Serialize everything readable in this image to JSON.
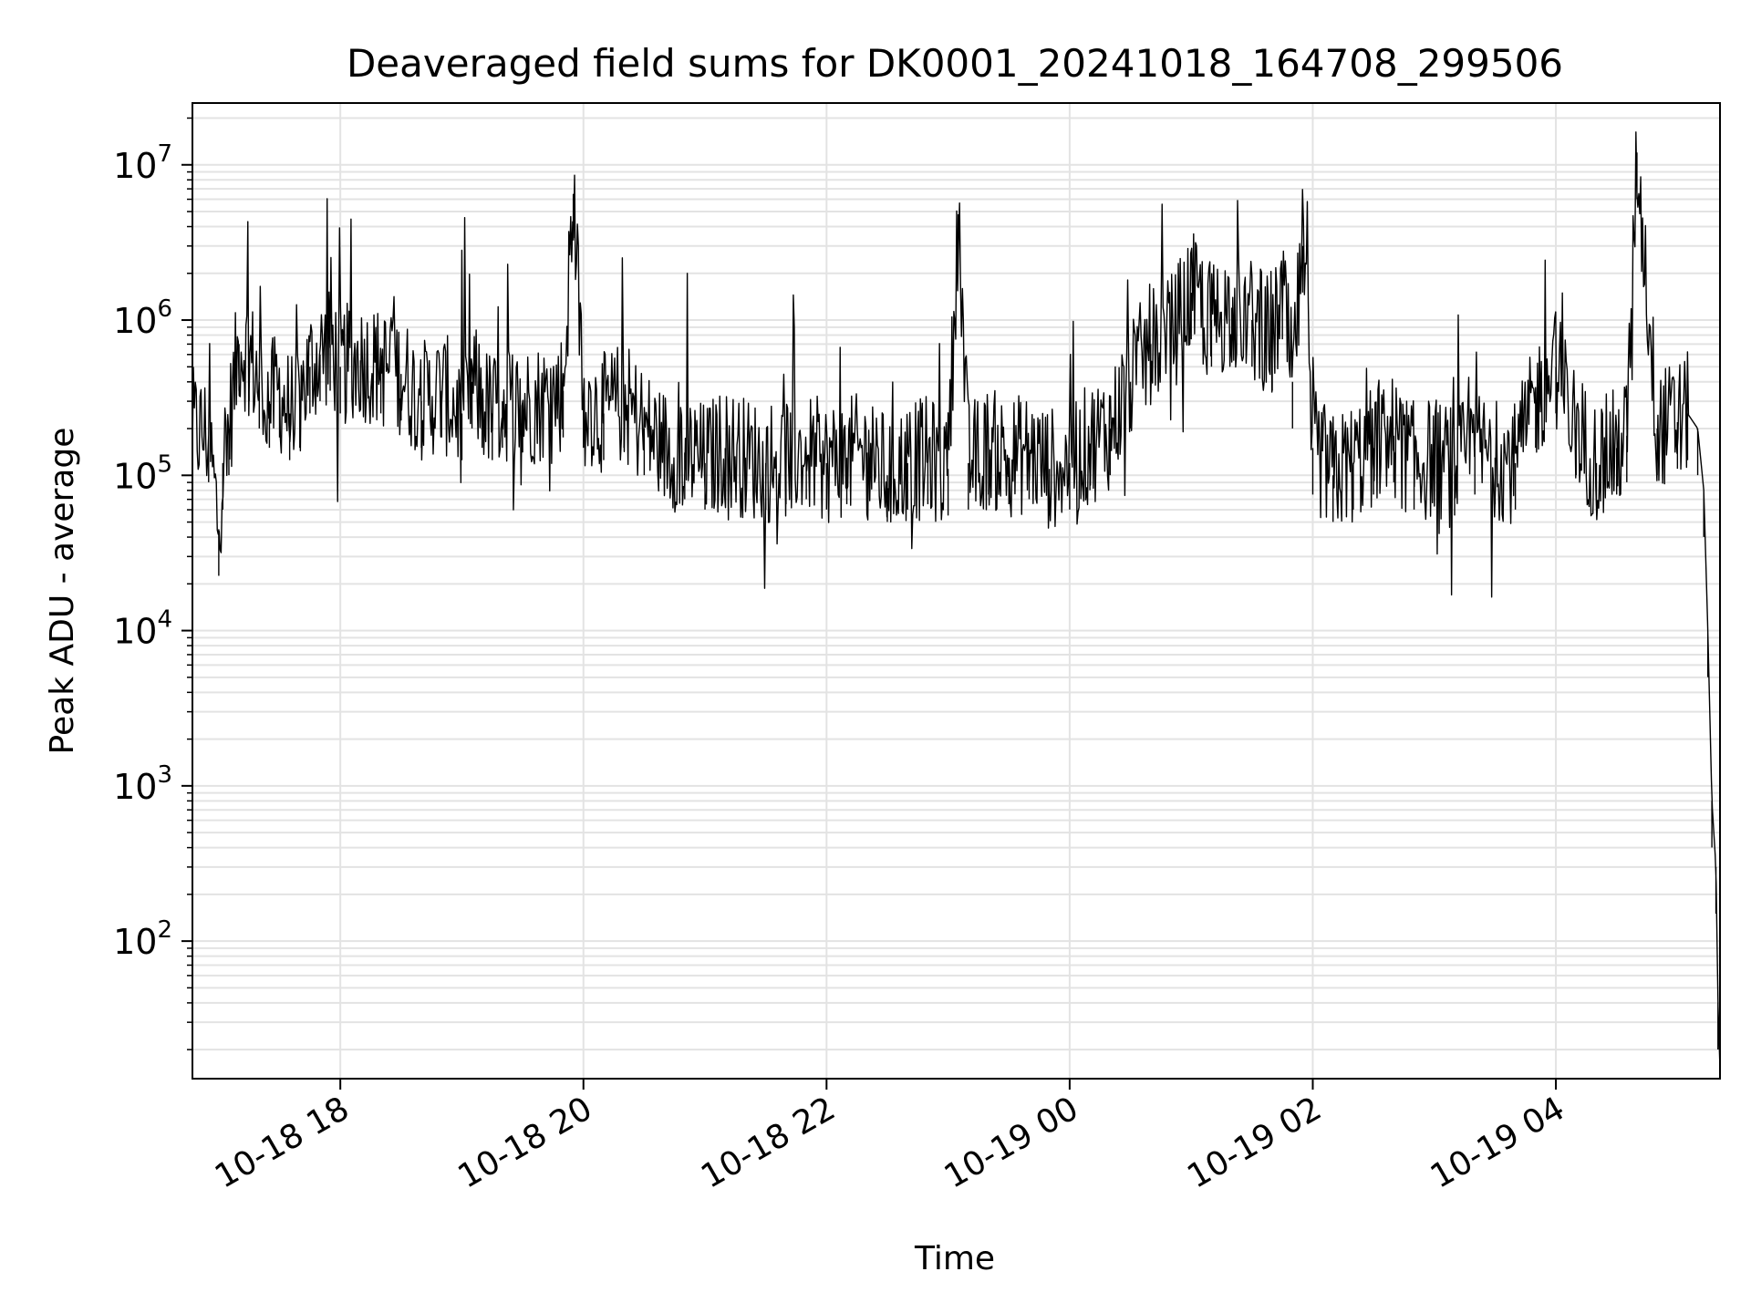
{
  "chart_data": {
    "type": "line",
    "title": "Deaveraged field sums for DK0001_20241018_164708_299506",
    "xlabel": "Time",
    "ylabel": "Peak ADU - average",
    "x_ticks": [
      "10-18 18",
      "10-18 20",
      "10-18 22",
      "10-19 00",
      "10-19 02",
      "10-19 04"
    ],
    "y_scale": "log",
    "y_ticks": [
      {
        "base": "10",
        "exp": "2",
        "value": 100
      },
      {
        "base": "10",
        "exp": "3",
        "value": 1000
      },
      {
        "base": "10",
        "exp": "4",
        "value": 10000
      },
      {
        "base": "10",
        "exp": "5",
        "value": 100000
      },
      {
        "base": "10",
        "exp": "6",
        "value": 1000000
      },
      {
        "base": "10",
        "exp": "7",
        "value": 10000000
      }
    ],
    "xlim": [
      "2024-10-18 16:47",
      "2024-10-19 05:21"
    ],
    "ylim": [
      13,
      25000000
    ],
    "grid": true,
    "line_color": "#000000",
    "grid_color": "#e3e3e3",
    "series": [
      {
        "x": [
          "2024-10-18 16:47",
          "2024-10-18 16:55",
          "2024-10-18 17:00",
          "2024-10-18 17:02",
          "2024-10-18 17:05",
          "2024-10-18 17:10",
          "2024-10-18 17:15",
          "2024-10-18 17:20",
          "2024-10-18 17:25",
          "2024-10-18 17:30",
          "2024-10-18 17:35",
          "2024-10-18 17:40",
          "2024-10-18 17:45",
          "2024-10-18 17:50",
          "2024-10-18 17:55",
          "2024-10-18 18:00",
          "2024-10-18 18:10",
          "2024-10-18 18:20",
          "2024-10-18 18:30",
          "2024-10-18 18:40",
          "2024-10-18 18:50",
          "2024-10-18 19:00",
          "2024-10-18 19:05",
          "2024-10-18 19:10",
          "2024-10-18 19:15",
          "2024-10-18 19:20",
          "2024-10-18 19:30",
          "2024-10-18 19:40",
          "2024-10-18 19:50",
          "2024-10-18 19:55",
          "2024-10-18 20:00",
          "2024-10-18 20:10",
          "2024-10-18 20:20",
          "2024-10-18 20:30",
          "2024-10-18 20:40",
          "2024-10-18 20:50",
          "2024-10-18 21:00",
          "2024-10-18 21:10",
          "2024-10-18 21:20",
          "2024-10-18 21:30",
          "2024-10-18 21:40",
          "2024-10-18 21:50",
          "2024-10-18 22:00",
          "2024-10-18 22:10",
          "2024-10-18 22:20",
          "2024-10-18 22:30",
          "2024-10-18 22:40",
          "2024-10-18 22:50",
          "2024-10-18 23:00",
          "2024-10-18 23:05",
          "2024-10-18 23:10",
          "2024-10-18 23:20",
          "2024-10-18 23:30",
          "2024-10-18 23:40",
          "2024-10-18 23:50",
          "2024-10-19 00:00",
          "2024-10-19 00:10",
          "2024-10-19 00:20",
          "2024-10-19 00:30",
          "2024-10-19 00:40",
          "2024-10-19 00:50",
          "2024-10-19 01:00",
          "2024-10-19 01:10",
          "2024-10-19 01:20",
          "2024-10-19 01:30",
          "2024-10-19 01:40",
          "2024-10-19 01:45",
          "2024-10-19 01:50",
          "2024-10-19 01:55",
          "2024-10-19 02:00",
          "2024-10-19 02:10",
          "2024-10-19 02:20",
          "2024-10-19 02:30",
          "2024-10-19 02:40",
          "2024-10-19 02:50",
          "2024-10-19 03:00",
          "2024-10-19 03:10",
          "2024-10-19 03:20",
          "2024-10-19 03:30",
          "2024-10-19 03:40",
          "2024-10-19 03:50",
          "2024-10-19 04:00",
          "2024-10-19 04:10",
          "2024-10-19 04:20",
          "2024-10-19 04:30",
          "2024-10-19 04:35",
          "2024-10-19 04:40",
          "2024-10-19 04:50",
          "2024-10-19 05:00",
          "2024-10-19 05:05",
          "2024-10-19 05:10",
          "2024-10-19 05:13",
          "2024-10-19 05:15",
          "2024-10-19 05:17",
          "2024-10-19 05:19",
          "2024-10-19 05:20",
          "2024-10-19 05:21"
        ],
        "y": [
          200000,
          180000,
          45000,
          120000,
          200000,
          700000,
          600000,
          400000,
          300000,
          350000,
          250000,
          300000,
          500000,
          600000,
          700000,
          500000,
          550000,
          500000,
          450000,
          300000,
          350000,
          250000,
          400000,
          300000,
          250000,
          300000,
          280000,
          300000,
          350000,
          6500000,
          300000,
          250000,
          300000,
          200000,
          150000,
          140000,
          120000,
          150000,
          130000,
          120000,
          130000,
          140000,
          120000,
          130000,
          140000,
          100000,
          120000,
          130000,
          110000,
          4800000,
          120000,
          150000,
          130000,
          140000,
          110000,
          120000,
          160000,
          200000,
          400000,
          700000,
          800000,
          1500000,
          1000000,
          1200000,
          1000000,
          700000,
          1500000,
          400000,
          3000000,
          150000,
          100000,
          120000,
          150000,
          180000,
          120000,
          130000,
          110000,
          150000,
          130000,
          120000,
          300000,
          500000,
          200000,
          120000,
          150000,
          180000,
          12000000,
          200000,
          220000,
          250000,
          200000,
          80000,
          10000,
          800,
          300,
          40,
          15
        ]
      }
    ]
  }
}
